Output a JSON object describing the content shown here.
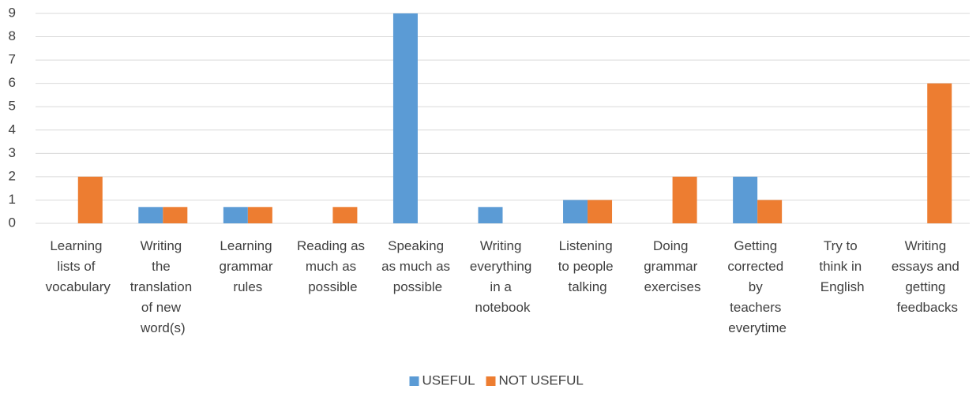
{
  "chart_data": {
    "type": "bar",
    "categories": [
      "Learning lists of vocabulary",
      "Writing the translation of new word(s)",
      "Learning grammar rules",
      "Reading as much as possible",
      "Speaking as much as possible",
      "Writing everything in a notebook",
      "Listening to people talking",
      "Doing grammar exercises",
      "Getting corrected by teachers everytime",
      "Try to think in English",
      "Writing essays and getting feedbacks"
    ],
    "series": [
      {
        "name": "USEFUL",
        "color": "#5b9bd5",
        "values": [
          0,
          0.7,
          0.7,
          0,
          9,
          0.7,
          1,
          0,
          2,
          0,
          0
        ]
      },
      {
        "name": "NOT USEFUL",
        "color": "#ed7d31",
        "values": [
          2,
          0.7,
          0.7,
          0.7,
          0,
          0,
          1,
          2,
          1,
          0,
          6
        ]
      }
    ],
    "ylim": [
      0,
      9
    ],
    "yticks": [
      0,
      1,
      2,
      3,
      4,
      5,
      6,
      7,
      8,
      9
    ],
    "grid": true,
    "legend": "bottom"
  }
}
